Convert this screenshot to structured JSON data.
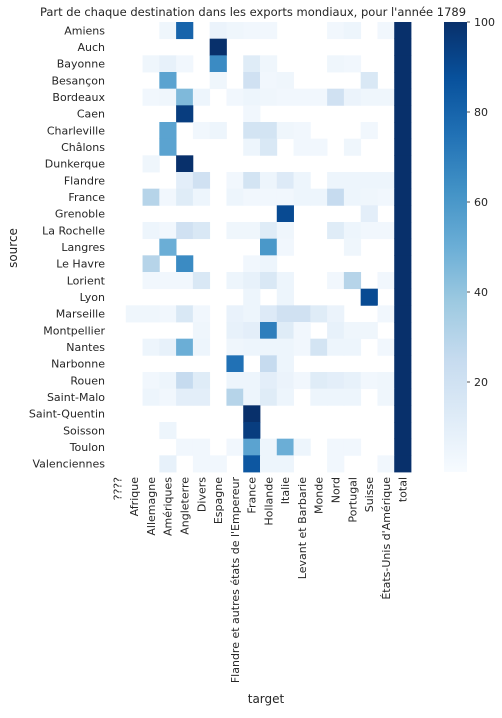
{
  "chart_data": {
    "type": "heatmap",
    "title": "Part de chaque destination dans les exports mondiaux, pour l'année 1789",
    "xlabel": "target",
    "ylabel": "source",
    "x_categories": [
      "????",
      "Afrique",
      "Allemagne",
      "Amériques",
      "Angleterre",
      "Divers",
      "Espagne",
      "Flandre et autres états de l'Empereur",
      "France",
      "Hollande",
      "Italie",
      "Levant et Barbarie",
      "Monde",
      "Nord",
      "Portugal",
      "Suisse",
      "États-Unis d'Amérique",
      "total"
    ],
    "y_categories": [
      "Amiens",
      "Auch",
      "Bayonne",
      "Besançon",
      "Bordeaux",
      "Caen",
      "Charleville",
      "Châlons",
      "Dunkerque",
      "Flandre",
      "France",
      "Grenoble",
      "La Rochelle",
      "Langres",
      "Le Havre",
      "Lorient",
      "Lyon",
      "Marseille",
      "Montpellier",
      "Nantes",
      "Narbonne",
      "Rouen",
      "Saint-Malo",
      "Saint-Quentin",
      "Soisson",
      "Toulon",
      "Valenciennes"
    ],
    "values": [
      [
        null,
        null,
        null,
        4,
        80,
        null,
        6,
        4,
        3,
        3,
        null,
        null,
        null,
        3,
        5,
        null,
        3,
        100
      ],
      [
        null,
        null,
        null,
        null,
        null,
        null,
        100,
        null,
        null,
        null,
        null,
        null,
        null,
        null,
        null,
        null,
        null,
        100
      ],
      [
        null,
        null,
        4,
        8,
        3,
        null,
        65,
        null,
        12,
        4,
        null,
        null,
        null,
        4,
        3,
        null,
        null,
        100
      ],
      [
        null,
        null,
        null,
        55,
        null,
        null,
        4,
        null,
        20,
        3,
        4,
        null,
        null,
        null,
        null,
        15,
        null,
        100
      ],
      [
        null,
        null,
        3,
        4,
        45,
        5,
        null,
        3,
        5,
        4,
        3,
        3,
        3,
        20,
        6,
        4,
        4,
        100
      ],
      [
        null,
        null,
        null,
        null,
        95,
        null,
        null,
        null,
        3,
        null,
        null,
        null,
        null,
        null,
        null,
        null,
        null,
        100
      ],
      [
        null,
        null,
        null,
        55,
        null,
        3,
        5,
        null,
        18,
        18,
        4,
        3,
        null,
        null,
        null,
        3,
        null,
        100
      ],
      [
        null,
        null,
        null,
        55,
        null,
        null,
        null,
        null,
        5,
        15,
        null,
        3,
        3,
        null,
        4,
        null,
        null,
        100
      ],
      [
        null,
        null,
        4,
        null,
        100,
        null,
        null,
        null,
        null,
        null,
        null,
        null,
        null,
        null,
        null,
        null,
        null,
        100
      ],
      [
        null,
        null,
        null,
        null,
        10,
        20,
        null,
        3,
        18,
        5,
        13,
        5,
        null,
        5,
        5,
        5,
        5,
        100
      ],
      [
        null,
        null,
        30,
        3,
        12,
        5,
        null,
        5,
        3,
        3,
        3,
        5,
        5,
        25,
        5,
        4,
        3,
        100
      ],
      [
        null,
        null,
        null,
        null,
        null,
        null,
        null,
        null,
        null,
        null,
        90,
        null,
        null,
        null,
        null,
        10,
        null,
        100
      ],
      [
        null,
        null,
        5,
        3,
        20,
        15,
        null,
        4,
        4,
        12,
        4,
        null,
        null,
        12,
        5,
        3,
        3,
        100
      ],
      [
        null,
        null,
        null,
        50,
        null,
        null,
        null,
        null,
        null,
        60,
        3,
        null,
        null,
        null,
        4,
        null,
        null,
        100
      ],
      [
        null,
        null,
        30,
        null,
        65,
        null,
        null,
        null,
        3,
        5,
        null,
        null,
        null,
        null,
        null,
        null,
        null,
        100
      ],
      [
        null,
        null,
        3,
        3,
        3,
        15,
        null,
        5,
        8,
        15,
        5,
        null,
        null,
        3,
        30,
        null,
        3,
        100
      ],
      [
        null,
        null,
        null,
        null,
        null,
        null,
        null,
        null,
        5,
        null,
        5,
        null,
        null,
        null,
        null,
        90,
        null,
        100
      ],
      [
        null,
        4,
        4,
        3,
        15,
        3,
        null,
        7,
        5,
        13,
        20,
        20,
        12,
        6,
        null,
        null,
        3,
        100
      ],
      [
        null,
        null,
        null,
        null,
        null,
        4,
        null,
        8,
        10,
        70,
        12,
        3,
        null,
        8,
        4,
        4,
        null,
        100
      ],
      [
        null,
        null,
        5,
        8,
        50,
        5,
        null,
        4,
        5,
        5,
        5,
        3,
        18,
        5,
        5,
        null,
        3,
        100
      ],
      [
        null,
        null,
        null,
        null,
        null,
        null,
        null,
        75,
        null,
        25,
        5,
        null,
        null,
        null,
        null,
        null,
        null,
        100
      ],
      [
        null,
        null,
        3,
        5,
        25,
        12,
        null,
        5,
        5,
        10,
        6,
        3,
        12,
        10,
        8,
        3,
        4,
        100
      ],
      [
        null,
        null,
        5,
        3,
        10,
        10,
        null,
        30,
        5,
        12,
        5,
        null,
        5,
        5,
        5,
        null,
        4,
        100
      ],
      [
        null,
        null,
        null,
        null,
        null,
        null,
        null,
        null,
        100,
        null,
        null,
        null,
        null,
        null,
        null,
        null,
        null,
        100
      ],
      [
        null,
        null,
        null,
        5,
        null,
        null,
        null,
        null,
        95,
        null,
        null,
        null,
        null,
        null,
        null,
        null,
        null,
        100
      ],
      [
        null,
        null,
        null,
        null,
        3,
        3,
        null,
        3,
        55,
        5,
        50,
        5,
        null,
        3,
        3,
        null,
        null,
        100
      ],
      [
        null,
        null,
        null,
        8,
        null,
        3,
        3,
        null,
        85,
        5,
        5,
        null,
        null,
        3,
        null,
        null,
        3,
        100
      ]
    ],
    "colormap": "Blues",
    "colorbar": {
      "min": 0,
      "max": 100,
      "ticks": [
        20,
        40,
        60,
        80,
        100
      ]
    },
    "grid": false,
    "legend": "colorbar-right"
  }
}
